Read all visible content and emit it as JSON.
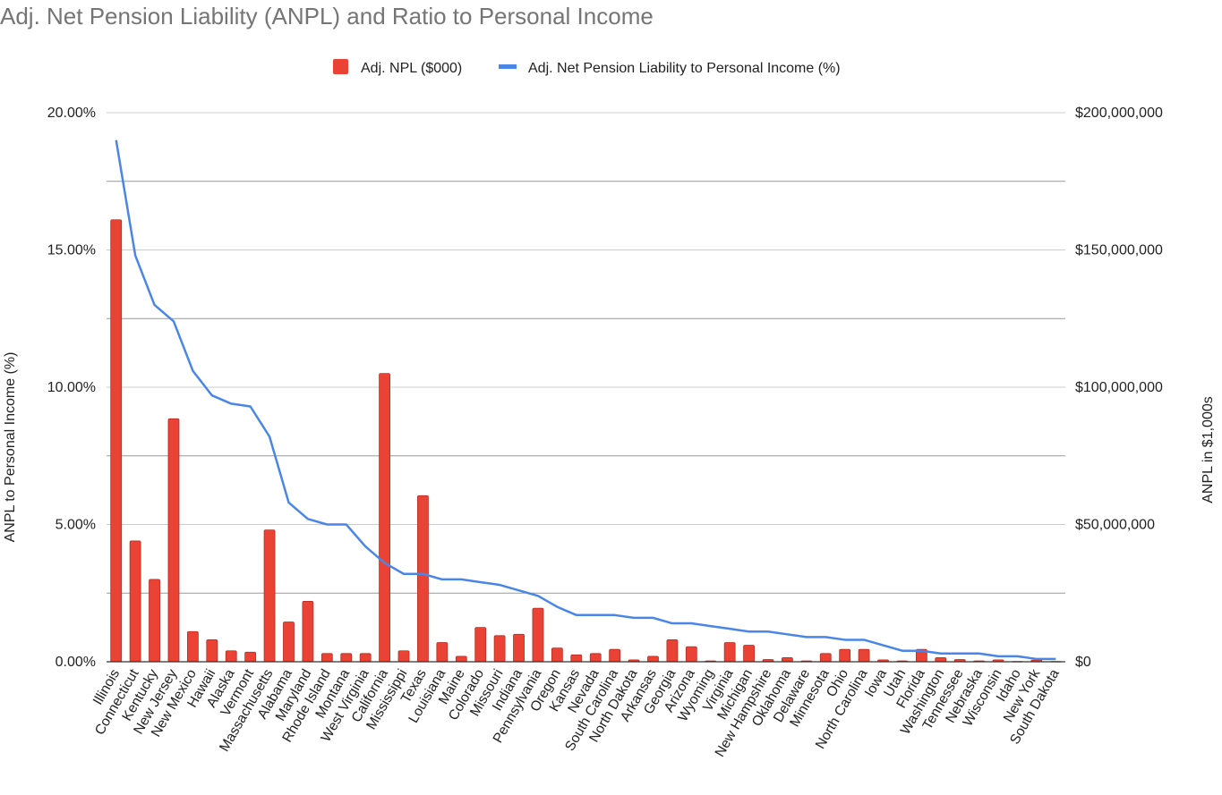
{
  "chart_data": {
    "type": "bar",
    "title": "Adj. Net Pension Liability (ANPL) and Ratio to Personal Income",
    "legend": {
      "placement": "top-center",
      "items": [
        {
          "label": "Adj. NPL ($000)",
          "color": "#ea4335"
        },
        {
          "label": "Adj. Net Pension Liability to Personal Income (%)",
          "color": "#4a86e8"
        }
      ]
    },
    "left_axis": {
      "title": "ANPL to Personal Income (%)",
      "ticks": [
        "0.00%",
        "5.00%",
        "10.00%",
        "15.00%",
        "20.00%"
      ],
      "range": [
        0,
        20
      ]
    },
    "right_axis": {
      "title": "ANPL in $1,000s",
      "ticks": [
        "$0",
        "$50,000,000",
        "$100,000,000",
        "$150,000,000",
        "$200,000,000"
      ],
      "range": [
        0,
        200000000
      ]
    },
    "grid": true,
    "categories": [
      "Illinois",
      "Connecticut",
      "Kentucky",
      "New Jersey",
      "New Mexico",
      "Hawaii",
      "Alaska",
      "Vermont",
      "Massachusetts",
      "Alabama",
      "Maryland",
      "Rhode Island",
      "Montana",
      "West Virginia",
      "California",
      "Mississippi",
      "Texas",
      "Louisiana",
      "Maine",
      "Colorado",
      "Missouri",
      "Indiana",
      "Pennsylvania",
      "Oregon",
      "Kansas",
      "Nevada",
      "South Carolina",
      "North Dakota",
      "Arkansas",
      "Georgia",
      "Arizona",
      "Wyoming",
      "Virginia",
      "Michigan",
      "New Hampshire",
      "Oklahoma",
      "Delaware",
      "Minnesota",
      "Ohio",
      "North Carolina",
      "Iowa",
      "Utah",
      "Florida",
      "Washington",
      "Tennessee",
      "Nebraska",
      "Wisconsin",
      "Idaho",
      "New York",
      "South Dakota"
    ],
    "series": [
      {
        "name": "Adj. NPL ($000)",
        "type": "bar",
        "axis": "right",
        "color": "#ea4335",
        "values": [
          161000000,
          44000000,
          30000000,
          88500000,
          11000000,
          8000000,
          4000000,
          3500000,
          48000000,
          14500000,
          22000000,
          3000000,
          3000000,
          3000000,
          105000000,
          4000000,
          60500000,
          7000000,
          2000000,
          12500000,
          9500000,
          10000000,
          19500000,
          5000000,
          2500000,
          3000000,
          4500000,
          700000,
          2000000,
          8000000,
          5500000,
          300000,
          7000000,
          6000000,
          800000,
          1500000,
          300000,
          3000000,
          4500000,
          4500000,
          700000,
          300000,
          4500000,
          1500000,
          800000,
          300000,
          700000,
          100000,
          600000,
          100000
        ]
      },
      {
        "name": "Adj. Net Pension Liability to Personal Income (%)",
        "type": "line",
        "axis": "left",
        "color": "#4a86e8",
        "values": [
          19.0,
          14.8,
          13.0,
          12.4,
          10.6,
          9.7,
          9.4,
          9.3,
          8.2,
          5.8,
          5.2,
          5.0,
          5.0,
          4.2,
          3.6,
          3.2,
          3.2,
          3.0,
          3.0,
          2.9,
          2.8,
          2.6,
          2.4,
          2.0,
          1.7,
          1.7,
          1.7,
          1.6,
          1.6,
          1.4,
          1.4,
          1.3,
          1.2,
          1.1,
          1.1,
          1.0,
          0.9,
          0.9,
          0.8,
          0.8,
          0.6,
          0.4,
          0.4,
          0.3,
          0.3,
          0.3,
          0.2,
          0.2,
          0.1,
          0.1
        ]
      }
    ]
  }
}
